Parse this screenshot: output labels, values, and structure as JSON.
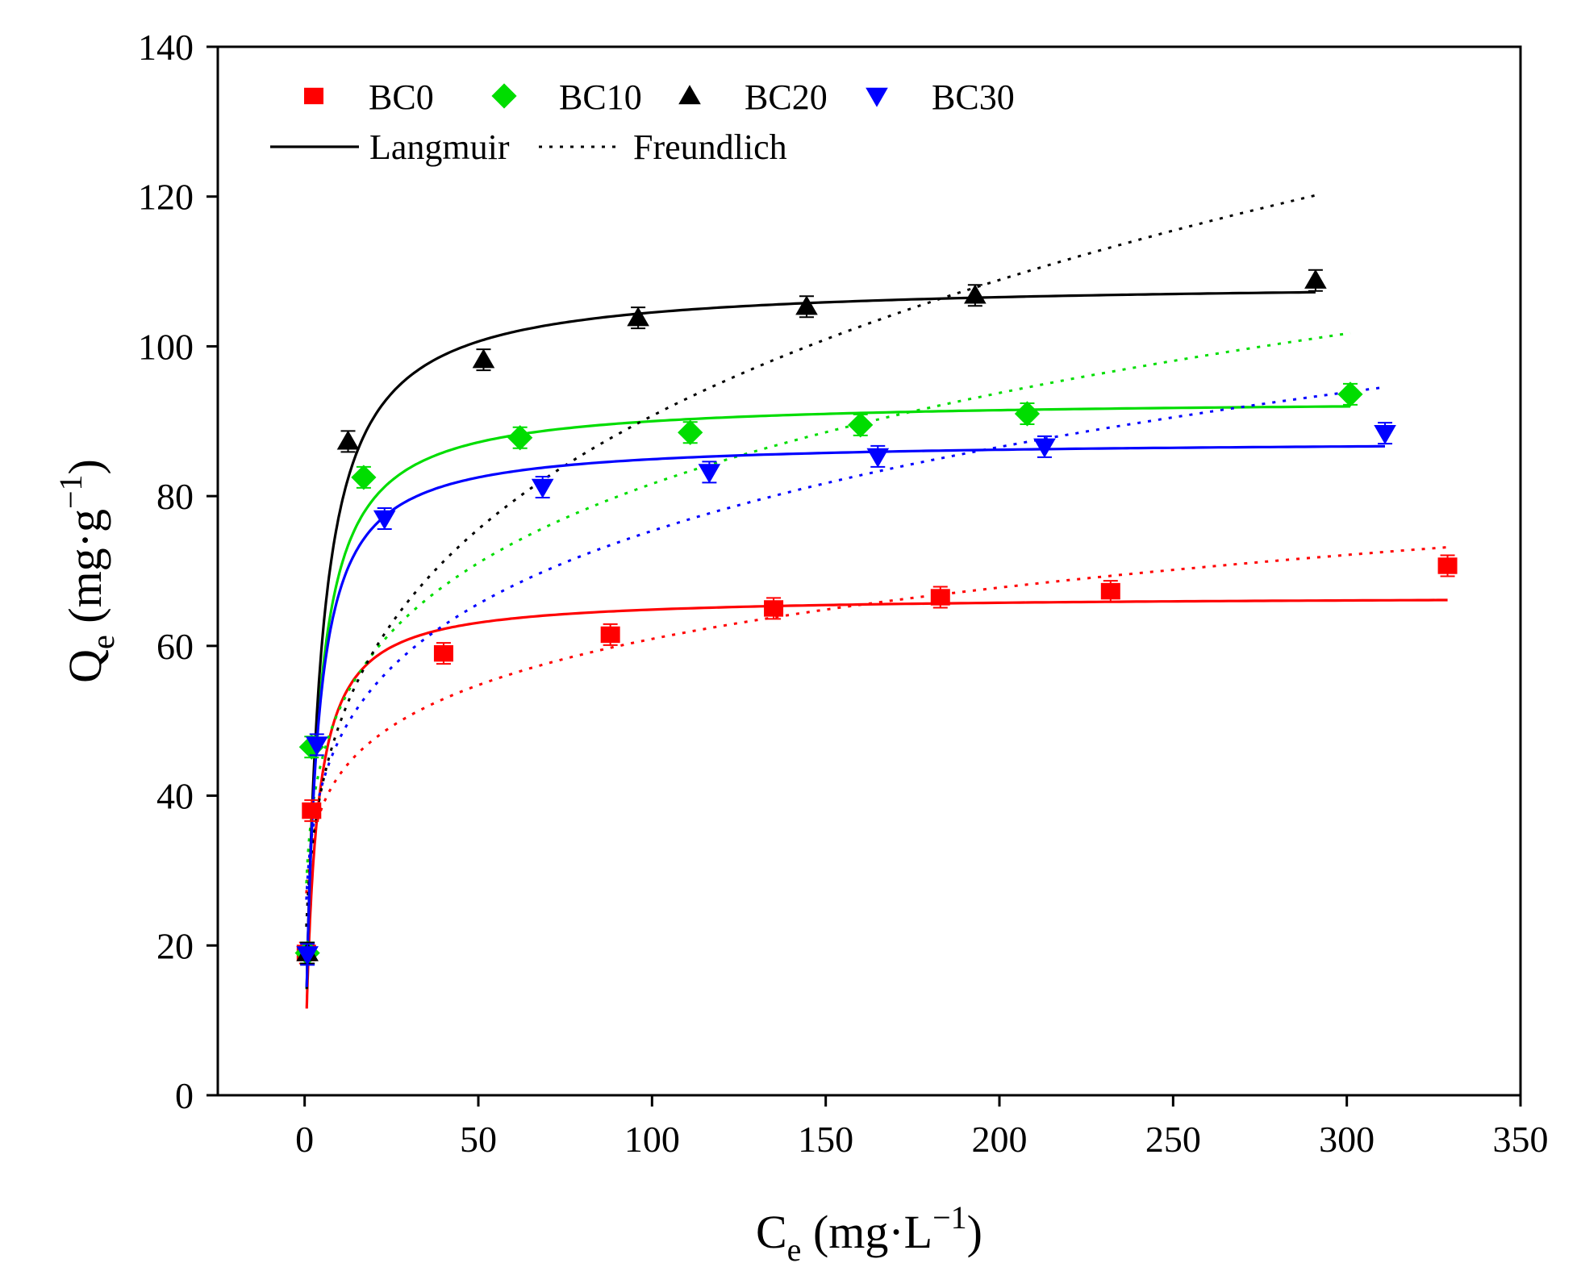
{
  "chart_data": {
    "type": "scatter",
    "title": "",
    "xlabel": {
      "base": "C",
      "sub": "e",
      "unit_open": " (mg·L",
      "sup": "−1",
      "unit_close": ")"
    },
    "ylabel": {
      "base": "Q",
      "sub": "e",
      "unit_open": " (mg·g",
      "sup": "−1",
      "unit_close": ")"
    },
    "xlim": [
      -25,
      350
    ],
    "ylim": [
      0,
      140
    ],
    "xticks": [
      0,
      50,
      100,
      150,
      200,
      250,
      300,
      350
    ],
    "yticks": [
      0,
      20,
      40,
      60,
      80,
      100,
      120,
      140
    ],
    "xtick_labels": [
      "0",
      "50",
      "100",
      "150",
      "200",
      "250",
      "300",
      "350"
    ],
    "ytick_labels": [
      "0",
      "20",
      "40",
      "60",
      "80",
      "100",
      "120",
      "140"
    ],
    "grid": false,
    "legend_position": "top-left",
    "model_legend": {
      "langmuir": "Langmuir",
      "freundlich": "Freundlich"
    },
    "series": [
      {
        "name": "BC0",
        "color": "#ff0000",
        "marker": "square",
        "x": [
          0.5,
          2,
          40,
          88,
          135,
          183,
          232,
          329
        ],
        "y": [
          19,
          38,
          59,
          61.5,
          65,
          66.5,
          67.3,
          70.7
        ],
        "langmuir": {
          "qm": 66.7,
          "kl": 0.35,
          "x_end": 329
        },
        "freundlich": {
          "kf": 30.0,
          "n": 6.5,
          "x_end": 329
        }
      },
      {
        "name": "BC10",
        "color": "#00dd00",
        "marker": "diamond",
        "x": [
          0.8,
          2,
          17,
          62,
          111,
          160,
          208,
          301
        ],
        "y": [
          19,
          46.5,
          82.5,
          87.8,
          88.5,
          89.5,
          91,
          93.6
        ],
        "langmuir": {
          "qm": 93.0,
          "kl": 0.3,
          "x_end": 301
        },
        "freundlich": {
          "kf": 32.5,
          "n": 5.0,
          "x_end": 301
        }
      },
      {
        "name": "BC20",
        "color": "#000000",
        "marker": "triangle-up",
        "x": [
          0.8,
          12.5,
          51.5,
          96,
          144.5,
          193,
          291
        ],
        "y": [
          19,
          87.3,
          98.2,
          103.8,
          105.3,
          106.8,
          108.8
        ],
        "langmuir": {
          "qm": 108.7,
          "kl": 0.25,
          "x_end": 291
        },
        "freundlich": {
          "kf": 27.0,
          "n": 3.8,
          "x_end": 291
        }
      },
      {
        "name": "BC30",
        "color": "#0000ff",
        "marker": "triangle-down",
        "x": [
          0.8,
          3.5,
          23,
          68.5,
          116.5,
          165,
          213,
          311
        ],
        "y": [
          18.8,
          46.8,
          77,
          81.2,
          83.2,
          85.3,
          86.6,
          88.4
        ],
        "langmuir": {
          "qm": 87.5,
          "kl": 0.33,
          "x_end": 311
        },
        "freundlich": {
          "kf": 30.0,
          "n": 5.0,
          "x_end": 311
        }
      }
    ]
  }
}
